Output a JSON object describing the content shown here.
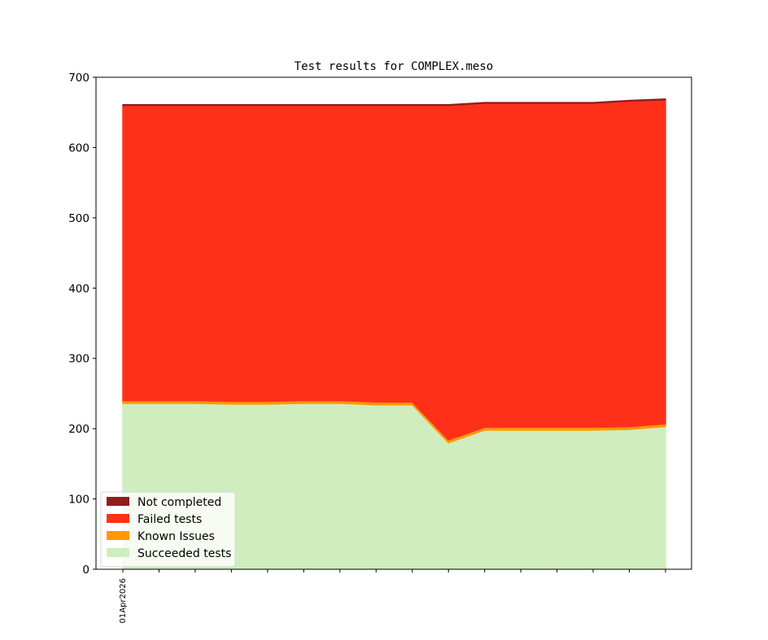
{
  "chart_data": {
    "type": "area",
    "stacked": true,
    "title": "Test results for COMPLEX.meso",
    "xlabel": "",
    "ylabel": "",
    "ylim": [
      0,
      700
    ],
    "yticks": [
      0,
      100,
      200,
      300,
      400,
      500,
      600,
      700
    ],
    "x_tick_count": 16,
    "x_tick_labels": [
      {
        "index": 0,
        "label": "01Apr2026"
      }
    ],
    "grid": false,
    "legend_position": "lower-left",
    "series": [
      {
        "name": "Succeeded tests",
        "color": "#cfedbe",
        "values": [
          236,
          236,
          236,
          235,
          235,
          236,
          236,
          234,
          234,
          180,
          198,
          198,
          198,
          198,
          199,
          203
        ]
      },
      {
        "name": "Known Issues",
        "color": "#ff9900",
        "values": [
          4,
          4,
          4,
          4,
          4,
          4,
          4,
          4,
          4,
          4,
          4,
          4,
          4,
          4,
          4,
          4
        ]
      },
      {
        "name": "Failed tests",
        "color": "#ff301a",
        "values": [
          420,
          420,
          420,
          421,
          421,
          420,
          420,
          422,
          422,
          476,
          461,
          461,
          461,
          461,
          463,
          461
        ]
      },
      {
        "name": "Not completed",
        "color": "#931c1c",
        "values": [
          1,
          1,
          1,
          1,
          1,
          1,
          1,
          1,
          1,
          1,
          1,
          1,
          1,
          1,
          1,
          1
        ]
      }
    ],
    "legend_order": [
      "Not completed",
      "Failed tests",
      "Known Issues",
      "Succeeded tests"
    ]
  }
}
